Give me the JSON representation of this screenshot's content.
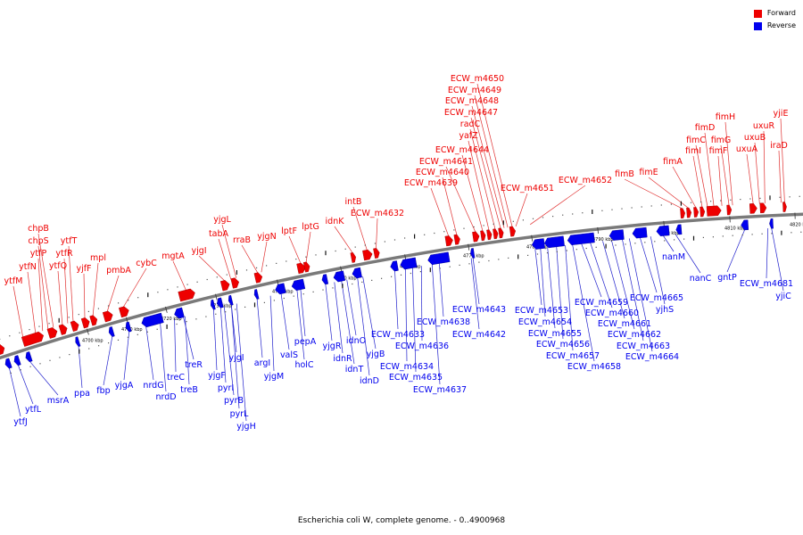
{
  "caption": "Escherichia coli W, complete genome. - 0..4900968",
  "legend": [
    {
      "label": "Forward",
      "color": "#ee0000"
    },
    {
      "label": "Reverse",
      "color": "#0000ee"
    }
  ],
  "colors": {
    "forward": "#ee0000",
    "reverse": "#0000ee",
    "line_forward": "#e03030",
    "line_reverse": "#2020cc",
    "backbone": "#7a7a7a"
  },
  "scale_labels": [
    "4700 kbp",
    "4710 kbp",
    "4720 kbp",
    "4730 kbp",
    "4740 kbp",
    "4750 kbp",
    "4760 kbp",
    "4770 kbp",
    "4780 kbp",
    "4790 kbp",
    "4800 kbp",
    "4810 kbp",
    "4820 kbp"
  ],
  "forward_genes": [
    "ytfM",
    "ytfN",
    "ytfP",
    "chpS",
    "chpB",
    "ytfQ",
    "ytfR",
    "ytfT",
    "yjfF",
    "mpl",
    "pmbA",
    "cybC",
    "mgtA",
    "yjgI",
    "tabA",
    "yjgL",
    "rraB",
    "yjgN",
    "lptF",
    "lptG",
    "idnK",
    "intB",
    "ECW_m4632",
    "ECW_m4639",
    "ECW_m4640",
    "ECW_m4641",
    "ECW_m4644",
    "yafZ",
    "radC",
    "ECW_m4647",
    "ECW_m4648",
    "ECW_m4649",
    "ECW_m4650",
    "ECW_m4651",
    "ECW_m4652",
    "fimB",
    "fimE",
    "fimA",
    "fimI",
    "fimC",
    "fimD",
    "fimF",
    "fimG",
    "fimH",
    "uxuA",
    "uxuB",
    "uxuR",
    "iraD",
    "yjiE"
  ],
  "reverse_genes": [
    "ytfJ",
    "ytfL",
    "msrA",
    "ppa",
    "fbp",
    "yjgA",
    "nrdG",
    "nrdD",
    "treC",
    "treB",
    "treR",
    "yjgF",
    "pyrI",
    "pyrB",
    "pyrL",
    "yjgH",
    "yjgI",
    "argI",
    "yjgM",
    "valS",
    "holC",
    "pepA",
    "yjgR",
    "idnR",
    "idnT",
    "idnO",
    "idnD",
    "yjgB",
    "ECW_m4633",
    "ECW_m4634",
    "ECW_m4635",
    "ECW_m4636",
    "ECW_m4637",
    "ECW_m4638",
    "ECW_m4642",
    "ECW_m4643",
    "ECW_m4653",
    "ECW_m4654",
    "ECW_m4655",
    "ECW_m4656",
    "ECW_m4657",
    "ECW_m4658",
    "ECW_m4659",
    "ECW_m4660",
    "ECW_m4661",
    "ECW_m4662",
    "ECW_m4663",
    "ECW_m4664",
    "ECW_m4665",
    "yjhS",
    "nanM",
    "nanC",
    "gntP",
    "ECW_m4681",
    "yjiC"
  ]
}
